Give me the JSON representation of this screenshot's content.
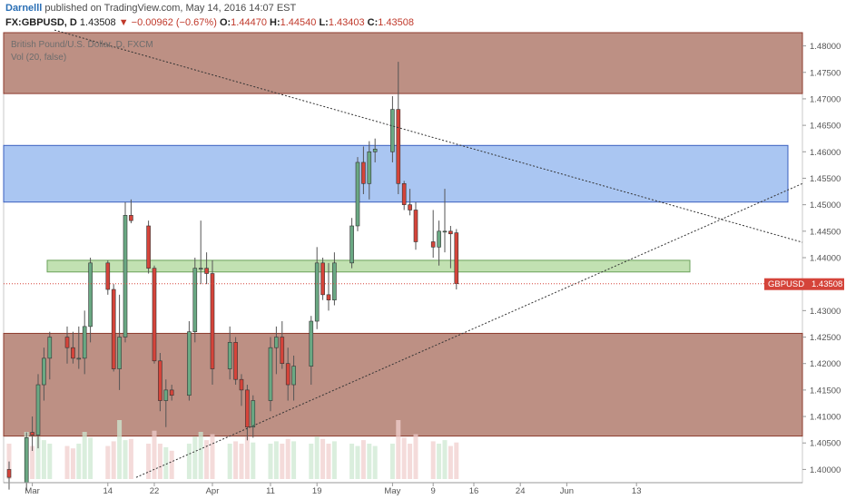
{
  "header": {
    "author": "Darnelll",
    "published_text": " published on TradingView.com, May 14, 2016 14:07 EST",
    "symbol": "FX:GBPUSD, D",
    "last": "1.43508",
    "change": "▼ −0.00962 (−0.67%)",
    "o_label": "O:",
    "o_value": "1.44470",
    "h_label": "H:",
    "h_value": "1.44540",
    "l_label": "L:",
    "l_value": "1.43403",
    "c_label": "C:",
    "c_value": "1.43508"
  },
  "legend": {
    "title": "British Pound/U.S. Dollar, D, FXCM",
    "vol": "Vol (20, false)"
  },
  "colors": {
    "up": "#6aa883",
    "down": "#d5443a",
    "up_vol": "#cde8d2",
    "down_vol": "#f0cfcd",
    "resistance_zone": "#b27d6f",
    "support_zone": "#b27d6f",
    "blue_zone": "#9bbcf0",
    "green_zone": "#b7dca4",
    "price_tag": "#d5443a"
  },
  "price_tag": {
    "label": "GBPUSD",
    "value": "1.43508"
  },
  "chart_data": {
    "type": "candlestick",
    "symbol": "GBPUSD",
    "timeframe": "D",
    "y_axis": {
      "range": [
        1.3975,
        1.4825
      ],
      "ticks": [
        "1.40000",
        "1.40500",
        "1.41000",
        "1.41500",
        "1.42000",
        "1.42500",
        "1.43000",
        "1.43500",
        "1.44000",
        "1.44500",
        "1.45000",
        "1.45500",
        "1.46000",
        "1.46500",
        "1.47000",
        "1.47500",
        "1.48000"
      ]
    },
    "x_axis": {
      "ticks": [
        {
          "label": "Mar",
          "date": "2016-03-01"
        },
        {
          "label": "14",
          "date": "2016-03-14"
        },
        {
          "label": "22",
          "date": "2016-03-22"
        },
        {
          "label": "Apr",
          "date": "2016-04-01"
        },
        {
          "label": "11",
          "date": "2016-04-11"
        },
        {
          "label": "19",
          "date": "2016-04-19"
        },
        {
          "label": "May",
          "date": "2016-05-02"
        },
        {
          "label": "9",
          "date": "2016-05-09"
        },
        {
          "label": "16",
          "date": "2016-05-16"
        },
        {
          "label": "24",
          "date": "2016-05-24"
        },
        {
          "label": "Jun",
          "date": "2016-06-01"
        },
        {
          "label": "13",
          "date": "2016-06-13"
        }
      ]
    },
    "candles": [
      {
        "date": "2016-02-26",
        "o": 1.4,
        "h": 1.4015,
        "l": 1.3962,
        "c": 1.3985,
        "v": 0.3
      },
      {
        "date": "2016-02-29",
        "o": 1.3975,
        "h": 1.407,
        "l": 1.396,
        "c": 1.406,
        "v": 0.4
      },
      {
        "date": "2016-03-01",
        "o": 1.407,
        "h": 1.41,
        "l": 1.4035,
        "c": 1.4065,
        "v": 0.28
      },
      {
        "date": "2016-03-02",
        "o": 1.4065,
        "h": 1.418,
        "l": 1.404,
        "c": 1.416,
        "v": 0.36
      },
      {
        "date": "2016-03-03",
        "o": 1.416,
        "h": 1.423,
        "l": 1.413,
        "c": 1.421,
        "v": 0.33
      },
      {
        "date": "2016-03-04",
        "o": 1.421,
        "h": 1.426,
        "l": 1.417,
        "c": 1.425,
        "v": 0.3
      },
      {
        "date": "2016-03-07",
        "o": 1.425,
        "h": 1.427,
        "l": 1.42,
        "c": 1.423,
        "v": 0.28
      },
      {
        "date": "2016-03-08",
        "o": 1.423,
        "h": 1.426,
        "l": 1.42,
        "c": 1.421,
        "v": 0.26
      },
      {
        "date": "2016-03-09",
        "o": 1.421,
        "h": 1.427,
        "l": 1.419,
        "c": 1.421,
        "v": 0.3
      },
      {
        "date": "2016-03-10",
        "o": 1.421,
        "h": 1.43,
        "l": 1.418,
        "c": 1.427,
        "v": 0.4
      },
      {
        "date": "2016-03-11",
        "o": 1.427,
        "h": 1.44,
        "l": 1.424,
        "c": 1.439,
        "v": 0.35
      },
      {
        "date": "2016-03-14",
        "o": 1.439,
        "h": 1.4395,
        "l": 1.433,
        "c": 1.434,
        "v": 0.28
      },
      {
        "date": "2016-03-15",
        "o": 1.434,
        "h": 1.435,
        "l": 1.4185,
        "c": 1.419,
        "v": 0.32
      },
      {
        "date": "2016-03-16",
        "o": 1.419,
        "h": 1.433,
        "l": 1.415,
        "c": 1.425,
        "v": 0.5
      },
      {
        "date": "2016-03-17",
        "o": 1.425,
        "h": 1.4505,
        "l": 1.424,
        "c": 1.448,
        "v": 0.33
      },
      {
        "date": "2016-03-18",
        "o": 1.448,
        "h": 1.451,
        "l": 1.4465,
        "c": 1.447,
        "v": 0.34
      },
      {
        "date": "2016-03-21",
        "o": 1.446,
        "h": 1.447,
        "l": 1.437,
        "c": 1.438,
        "v": 0.3
      },
      {
        "date": "2016-03-22",
        "o": 1.438,
        "h": 1.4385,
        "l": 1.42,
        "c": 1.4205,
        "v": 0.41
      },
      {
        "date": "2016-03-23",
        "o": 1.4205,
        "h": 1.422,
        "l": 1.411,
        "c": 1.413,
        "v": 0.3
      },
      {
        "date": "2016-03-24",
        "o": 1.413,
        "h": 1.417,
        "l": 1.408,
        "c": 1.415,
        "v": 0.27
      },
      {
        "date": "2016-03-25",
        "o": 1.415,
        "h": 1.416,
        "l": 1.413,
        "c": 1.414,
        "v": 0.24
      },
      {
        "date": "2016-03-28",
        "o": 1.414,
        "h": 1.428,
        "l": 1.413,
        "c": 1.426,
        "v": 0.3
      },
      {
        "date": "2016-03-29",
        "o": 1.426,
        "h": 1.44,
        "l": 1.424,
        "c": 1.438,
        "v": 0.36
      },
      {
        "date": "2016-03-30",
        "o": 1.438,
        "h": 1.447,
        "l": 1.435,
        "c": 1.438,
        "v": 0.4
      },
      {
        "date": "2016-03-31",
        "o": 1.438,
        "h": 1.441,
        "l": 1.435,
        "c": 1.437,
        "v": 0.33
      },
      {
        "date": "2016-04-01",
        "o": 1.437,
        "h": 1.4395,
        "l": 1.416,
        "c": 1.419,
        "v": 0.38
      },
      {
        "date": "2016-04-04",
        "o": 1.419,
        "h": 1.427,
        "l": 1.417,
        "c": 1.424,
        "v": 0.3
      },
      {
        "date": "2016-04-05",
        "o": 1.424,
        "h": 1.425,
        "l": 1.416,
        "c": 1.417,
        "v": 0.32
      },
      {
        "date": "2016-04-06",
        "o": 1.417,
        "h": 1.418,
        "l": 1.412,
        "c": 1.415,
        "v": 0.3
      },
      {
        "date": "2016-04-07",
        "o": 1.415,
        "h": 1.416,
        "l": 1.4055,
        "c": 1.408,
        "v": 0.36
      },
      {
        "date": "2016-04-08",
        "o": 1.408,
        "h": 1.414,
        "l": 1.406,
        "c": 1.413,
        "v": 0.31
      },
      {
        "date": "2016-04-11",
        "o": 1.413,
        "h": 1.425,
        "l": 1.411,
        "c": 1.423,
        "v": 0.3
      },
      {
        "date": "2016-04-12",
        "o": 1.423,
        "h": 1.427,
        "l": 1.418,
        "c": 1.425,
        "v": 0.32
      },
      {
        "date": "2016-04-13",
        "o": 1.425,
        "h": 1.428,
        "l": 1.419,
        "c": 1.42,
        "v": 0.3
      },
      {
        "date": "2016-04-14",
        "o": 1.42,
        "h": 1.423,
        "l": 1.413,
        "c": 1.416,
        "v": 0.34
      },
      {
        "date": "2016-04-15",
        "o": 1.416,
        "h": 1.4215,
        "l": 1.413,
        "c": 1.4195,
        "v": 0.32
      },
      {
        "date": "2016-04-18",
        "o": 1.4195,
        "h": 1.429,
        "l": 1.416,
        "c": 1.428,
        "v": 0.3
      },
      {
        "date": "2016-04-19",
        "o": 1.428,
        "h": 1.442,
        "l": 1.4265,
        "c": 1.439,
        "v": 0.36
      },
      {
        "date": "2016-04-20",
        "o": 1.439,
        "h": 1.44,
        "l": 1.432,
        "c": 1.433,
        "v": 0.34
      },
      {
        "date": "2016-04-21",
        "o": 1.433,
        "h": 1.439,
        "l": 1.43,
        "c": 1.432,
        "v": 0.3
      },
      {
        "date": "2016-04-22",
        "o": 1.432,
        "h": 1.441,
        "l": 1.431,
        "c": 1.439,
        "v": 0.32
      },
      {
        "date": "2016-04-25",
        "o": 1.439,
        "h": 1.4475,
        "l": 1.438,
        "c": 1.446,
        "v": 0.3
      },
      {
        "date": "2016-04-26",
        "o": 1.446,
        "h": 1.459,
        "l": 1.445,
        "c": 1.458,
        "v": 0.28
      },
      {
        "date": "2016-04-27",
        "o": 1.458,
        "h": 1.461,
        "l": 1.452,
        "c": 1.454,
        "v": 0.33
      },
      {
        "date": "2016-04-28",
        "o": 1.454,
        "h": 1.462,
        "l": 1.451,
        "c": 1.46,
        "v": 0.3
      },
      {
        "date": "2016-04-29",
        "o": 1.46,
        "h": 1.4625,
        "l": 1.458,
        "c": 1.4605,
        "v": 0.28
      },
      {
        "date": "2016-05-02",
        "o": 1.46,
        "h": 1.4705,
        "l": 1.458,
        "c": 1.468,
        "v": 0.3
      },
      {
        "date": "2016-05-03",
        "o": 1.468,
        "h": 1.477,
        "l": 1.452,
        "c": 1.454,
        "v": 0.5
      },
      {
        "date": "2016-05-04",
        "o": 1.454,
        "h": 1.4545,
        "l": 1.449,
        "c": 1.45,
        "v": 0.35
      },
      {
        "date": "2016-05-05",
        "o": 1.45,
        "h": 1.453,
        "l": 1.448,
        "c": 1.449,
        "v": 0.3
      },
      {
        "date": "2016-05-06",
        "o": 1.449,
        "h": 1.4505,
        "l": 1.4415,
        "c": 1.443,
        "v": 0.38
      },
      {
        "date": "2016-05-09",
        "o": 1.443,
        "h": 1.449,
        "l": 1.44,
        "c": 1.442,
        "v": 0.32
      },
      {
        "date": "2016-05-10",
        "o": 1.442,
        "h": 1.447,
        "l": 1.4385,
        "c": 1.445,
        "v": 0.3
      },
      {
        "date": "2016-05-11",
        "o": 1.445,
        "h": 1.453,
        "l": 1.441,
        "c": 1.445,
        "v": 0.33
      },
      {
        "date": "2016-05-12",
        "o": 1.445,
        "h": 1.446,
        "l": 1.438,
        "c": 1.4445,
        "v": 0.28
      },
      {
        "date": "2016-05-13",
        "o": 1.4447,
        "h": 1.4454,
        "l": 1.434,
        "c": 1.4351,
        "v": 0.31
      }
    ]
  }
}
